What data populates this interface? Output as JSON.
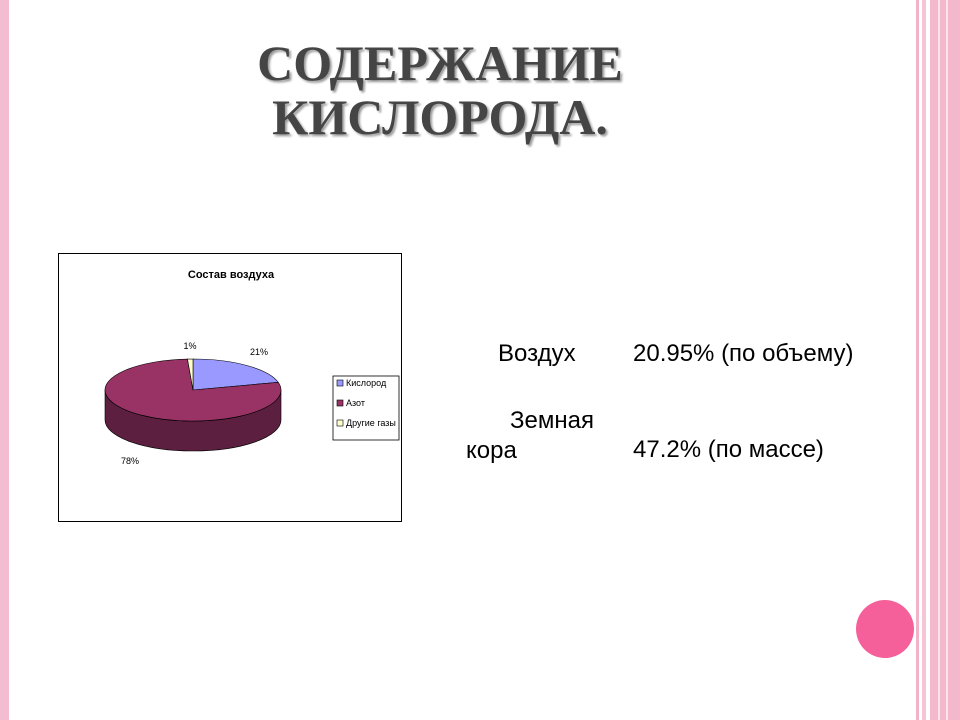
{
  "slide": {
    "title_line1": "СОДЕРЖАНИЕ",
    "title_line2": "КИСЛОРОДА."
  },
  "rows": [
    {
      "label": "Воздух",
      "value": "20.95%  (по объему)"
    },
    {
      "label_line1": "Земная",
      "label_line2": "кора",
      "value": "47.2%  (по массе)"
    }
  ],
  "colors": {
    "oxygen": "#9999ff",
    "nitrogen": "#993366",
    "other": "#ffffcc",
    "accent_dot": "#f5609a",
    "border_pink": "#f4bcd0"
  },
  "chart_data": {
    "type": "pie",
    "title": "Состав воздуха",
    "categories": [
      "Кислород",
      "Азот",
      "Другие газы"
    ],
    "values": [
      21,
      78,
      1
    ],
    "data_labels": [
      "21%",
      "78%",
      "1%"
    ],
    "legend_placement": "right"
  }
}
